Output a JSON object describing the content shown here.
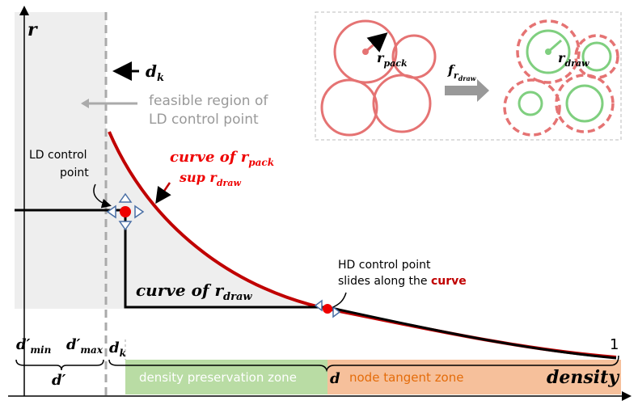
{
  "axis": {
    "y_label": "r",
    "x_label": "density",
    "x_end": "1"
  },
  "dk_arrow": {
    "base": "d",
    "sub": "k"
  },
  "feasible": [
    "feasible region of",
    "LD control point"
  ],
  "ld_label": [
    "LD control",
    "point"
  ],
  "curve_pack": {
    "text": "curve of r",
    "sub": "pack"
  },
  "sup_draw": {
    "text": "sup r",
    "sub": "draw"
  },
  "curve_draw": {
    "text": "curve of r",
    "sub": "draw"
  },
  "hd_label": {
    "line1": "HD control point",
    "line2": "slides along the ",
    "emph": "curve"
  },
  "d_min": {
    "base": "d′",
    "sub": "min"
  },
  "d_max": {
    "base": "d′",
    "sub": "max"
  },
  "d_k": {
    "base": "d",
    "sub": "k"
  },
  "d_prime": "d′",
  "zone_1": "density preservation zone",
  "d": "d",
  "zone_2": "node tangent zone",
  "inset": {
    "r_pack": {
      "base": "r",
      "sub": "pack"
    },
    "f": {
      "base": "f",
      "sub": "r",
      "subsub": "draw"
    },
    "r_draw": {
      "base": "r",
      "sub": "draw"
    }
  }
}
